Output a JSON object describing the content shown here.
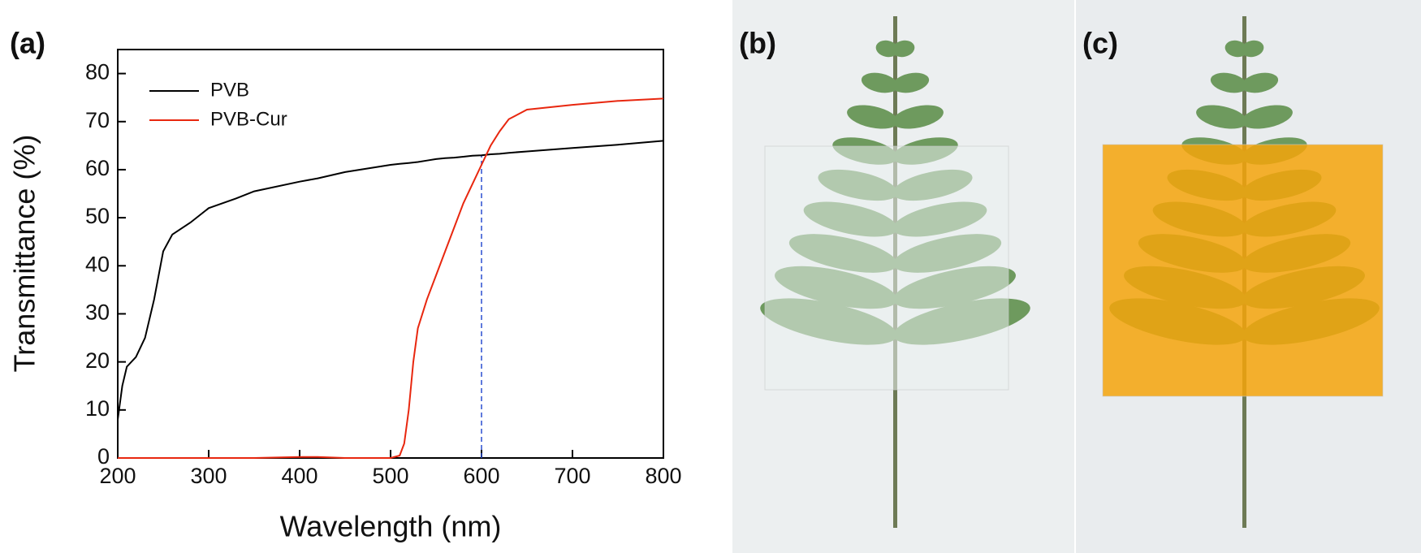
{
  "chart_data": {
    "type": "line",
    "panel_label": "(a)",
    "x_label": "Wavelength (nm)",
    "y_label": "Transmittance (%)",
    "x": [
      200,
      205,
      210,
      220,
      230,
      240,
      250,
      260,
      280,
      300,
      330,
      350,
      400,
      420,
      450,
      500,
      510,
      515,
      520,
      525,
      530,
      540,
      550,
      560,
      570,
      580,
      590,
      600,
      610,
      620,
      630,
      650,
      700,
      750,
      800
    ],
    "series": [
      {
        "name": "PVB",
        "color": "#000000",
        "values": [
          8,
          15,
          19,
          21,
          25,
          33,
          43,
          46.5,
          49,
          52,
          54,
          55.5,
          57.5,
          58.2,
          59.5,
          61,
          61.2,
          61.3,
          61.4,
          61.5,
          61.6,
          61.9,
          62.2,
          62.4,
          62.5,
          62.7,
          62.9,
          63,
          63.2,
          63.3,
          63.5,
          63.8,
          64.5,
          65.2,
          66
        ]
      },
      {
        "name": "PVB-Cur",
        "color": "#e8270f",
        "values": [
          0,
          0,
          0,
          0,
          0,
          0,
          0,
          0,
          0,
          0,
          0,
          0,
          0.2,
          0.2,
          0,
          0,
          0.5,
          3,
          10,
          20,
          27,
          33,
          38,
          43,
          48,
          53,
          57,
          61,
          65,
          68,
          70.5,
          72.5,
          73.5,
          74.3,
          74.8
        ]
      }
    ],
    "reference_line": {
      "x": 600,
      "ymax": 63,
      "color": "#2a4fd0"
    },
    "xlim": [
      200,
      800
    ],
    "xticks": [
      200,
      300,
      400,
      500,
      600,
      700,
      800
    ],
    "ylim": [
      0,
      85
    ],
    "yticks": [
      0,
      10,
      20,
      30,
      40,
      50,
      60,
      70,
      80
    ],
    "legend": "upper left"
  },
  "photos": [
    {
      "label": "(b)",
      "film_color": "rgba(235,240,240,0.55)"
    },
    {
      "label": "(c)",
      "film_color": "rgba(245,165,10,0.85)"
    }
  ]
}
